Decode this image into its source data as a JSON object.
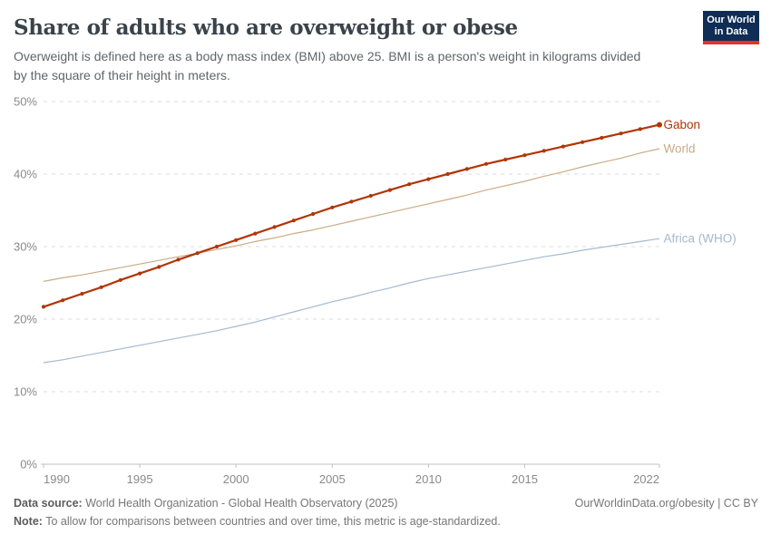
{
  "header": {
    "title": "Share of adults who are overweight or obese",
    "subtitle_lines": [
      "Overweight is defined here as a body mass index (BMI) above 25. BMI is a person's weight in kilograms divided",
      "by the square of their height in meters."
    ],
    "logo": {
      "line1": "Our World",
      "line2": "in Data",
      "bg_color": "#0f2d55",
      "accent_color": "#dd352a"
    }
  },
  "chart_data": {
    "type": "line",
    "title": "Share of adults who are overweight or obese",
    "xlabel": "",
    "ylabel": "",
    "ylim": [
      0,
      50
    ],
    "y_ticks": [
      0,
      10,
      20,
      30,
      40,
      50
    ],
    "y_tick_suffix": "%",
    "x_ticks": [
      1990,
      1995,
      2000,
      2005,
      2010,
      2015,
      2022
    ],
    "grid": true,
    "legend_position": "right-end-labels",
    "x": [
      1990,
      1991,
      1992,
      1993,
      1994,
      1995,
      1996,
      1997,
      1998,
      1999,
      2000,
      2001,
      2002,
      2003,
      2004,
      2005,
      2006,
      2007,
      2008,
      2009,
      2010,
      2011,
      2012,
      2013,
      2014,
      2015,
      2016,
      2017,
      2018,
      2019,
      2020,
      2021,
      2022
    ],
    "series": [
      {
        "name": "Gabon",
        "color": "#b13507",
        "markers": true,
        "values": [
          21.7,
          22.6,
          23.5,
          24.4,
          25.4,
          26.3,
          27.2,
          28.2,
          29.1,
          30.0,
          30.9,
          31.8,
          32.7,
          33.6,
          34.5,
          35.4,
          36.2,
          37.0,
          37.8,
          38.6,
          39.3,
          40.0,
          40.7,
          41.4,
          42.0,
          42.6,
          43.2,
          43.8,
          44.4,
          45.0,
          45.6,
          46.2,
          46.8
        ]
      },
      {
        "name": "World",
        "color": "#cbab85",
        "markers": false,
        "values": [
          25.2,
          25.7,
          26.1,
          26.6,
          27.1,
          27.6,
          28.1,
          28.6,
          29.1,
          29.6,
          30.1,
          30.7,
          31.2,
          31.8,
          32.3,
          32.9,
          33.5,
          34.1,
          34.7,
          35.3,
          35.9,
          36.5,
          37.1,
          37.8,
          38.4,
          39.0,
          39.7,
          40.3,
          41.0,
          41.6,
          42.2,
          42.9,
          43.5
        ]
      },
      {
        "name": "Africa (WHO)",
        "color": "#a4b9d0",
        "markers": false,
        "values": [
          14.0,
          14.4,
          14.9,
          15.4,
          15.9,
          16.4,
          16.9,
          17.4,
          17.9,
          18.4,
          19.0,
          19.6,
          20.3,
          21.0,
          21.7,
          22.4,
          23.0,
          23.7,
          24.3,
          25.0,
          25.6,
          26.1,
          26.6,
          27.1,
          27.6,
          28.1,
          28.6,
          29.0,
          29.5,
          29.9,
          30.3,
          30.7,
          31.1
        ]
      }
    ]
  },
  "footer": {
    "source_label": "Data source:",
    "source_text": " World Health Organization - Global Health Observatory (2025)",
    "note_label": "Note:",
    "note_text": " To allow for comparisons between countries and over time, this metric is age-standardized.",
    "link_text": "OurWorldinData.org/obesity | CC BY"
  }
}
